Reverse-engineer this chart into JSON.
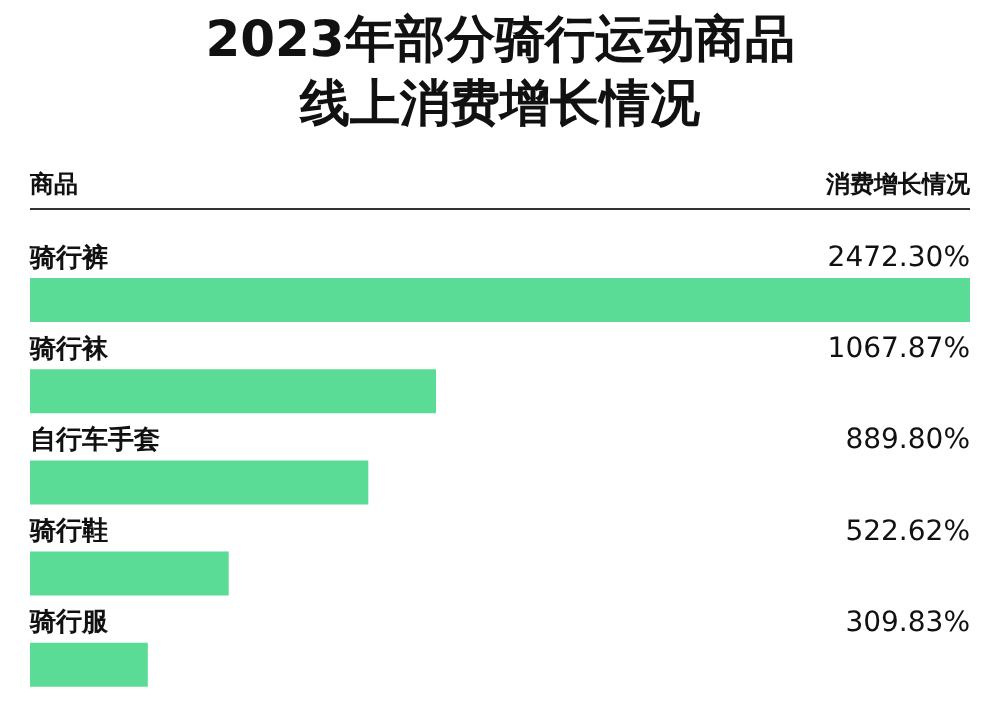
{
  "chart_data": {
    "type": "bar",
    "orientation": "horizontal",
    "title": "2023年部分骑行运动商品线上消费增长情况",
    "annotations": [
      "商品",
      "消费增长情况"
    ],
    "categories": [
      "骑行裤",
      "骑行袜",
      "自行车手套",
      "骑行鞋",
      "骑行服"
    ],
    "values": [
      2472.3,
      1067.87,
      889.8,
      522.62,
      309.83
    ],
    "value_labels": [
      "2472.30%",
      "1067.87%",
      "889.80%",
      "522.62%",
      "309.83%"
    ],
    "color": "#5bdc96"
  }
}
